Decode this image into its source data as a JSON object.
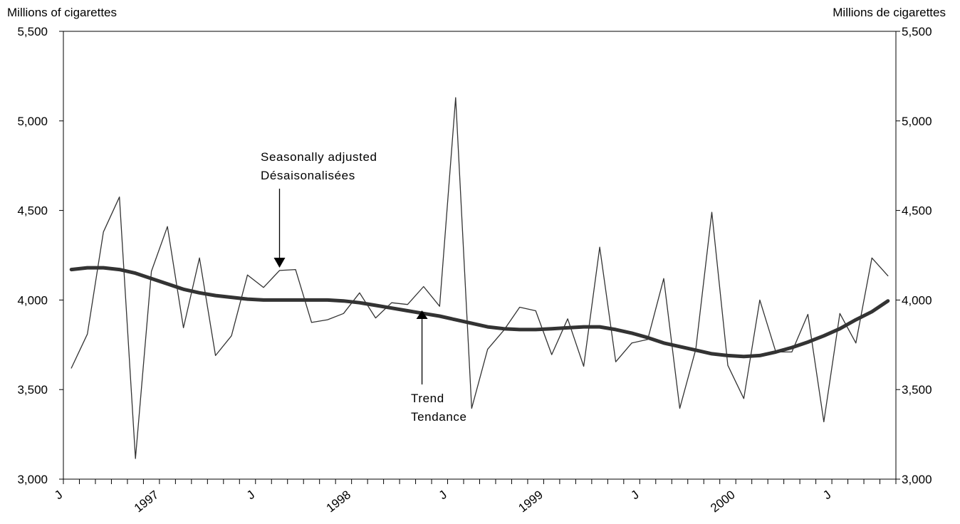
{
  "chart_data": {
    "type": "line",
    "ylabel_left": "Millions of cigarettes",
    "ylabel_right": "Millions de cigarettes",
    "ylim": [
      3000,
      5500
    ],
    "yticks": [
      3000,
      3500,
      4000,
      4500,
      5000,
      5500
    ],
    "ytick_labels": [
      "3,000",
      "3,500",
      "4,000",
      "4,500",
      "5,000",
      "5,500"
    ],
    "x_start": "1996-07",
    "x_end": "2001-06",
    "xtick_labels": [
      {
        "month": "1996-07",
        "label": "J"
      },
      {
        "month": "1997-01",
        "label": "1997"
      },
      {
        "month": "1997-07",
        "label": "J"
      },
      {
        "month": "1998-01",
        "label": "1998"
      },
      {
        "month": "1998-07",
        "label": "J"
      },
      {
        "month": "1999-01",
        "label": "1999"
      },
      {
        "month": "1999-07",
        "label": "J"
      },
      {
        "month": "2000-01",
        "label": "2000"
      },
      {
        "month": "2000-07",
        "label": "J"
      }
    ],
    "grid": false,
    "series": [
      {
        "name": "Seasonally adjusted",
        "color": "#333333",
        "values": [
          3620,
          3810,
          4380,
          4575,
          3115,
          4160,
          4410,
          3845,
          4235,
          3690,
          3800,
          4140,
          4070,
          4165,
          4170,
          3875,
          3890,
          3925,
          4040,
          3900,
          3985,
          3975,
          4075,
          3965,
          5130,
          3395,
          3725,
          3830,
          3960,
          3940,
          3695,
          3895,
          3630,
          4295,
          3655,
          3760,
          3780,
          4120,
          3395,
          3725,
          4490,
          3635,
          3450,
          4000,
          3710,
          3710,
          3920,
          3320,
          3925,
          3760,
          4235,
          4135
        ]
      },
      {
        "name": "Trend",
        "color": "#333333",
        "values": [
          4170,
          4180,
          4180,
          4170,
          4150,
          4120,
          4090,
          4060,
          4040,
          4025,
          4015,
          4005,
          4000,
          4000,
          4000,
          4000,
          4000,
          3995,
          3985,
          3970,
          3955,
          3940,
          3925,
          3910,
          3890,
          3870,
          3850,
          3840,
          3835,
          3835,
          3840,
          3845,
          3850,
          3850,
          3835,
          3815,
          3790,
          3760,
          3740,
          3720,
          3700,
          3690,
          3685,
          3690,
          3710,
          3735,
          3765,
          3800,
          3840,
          3890,
          3935,
          3995
        ]
      }
    ],
    "annotations": [
      {
        "lines": [
          "Seasonally adjusted",
          "Désaisonalisées"
        ],
        "points_to": "Seasonally adjusted"
      },
      {
        "lines": [
          "Trend",
          "Tendance"
        ],
        "points_to": "Trend"
      }
    ]
  }
}
